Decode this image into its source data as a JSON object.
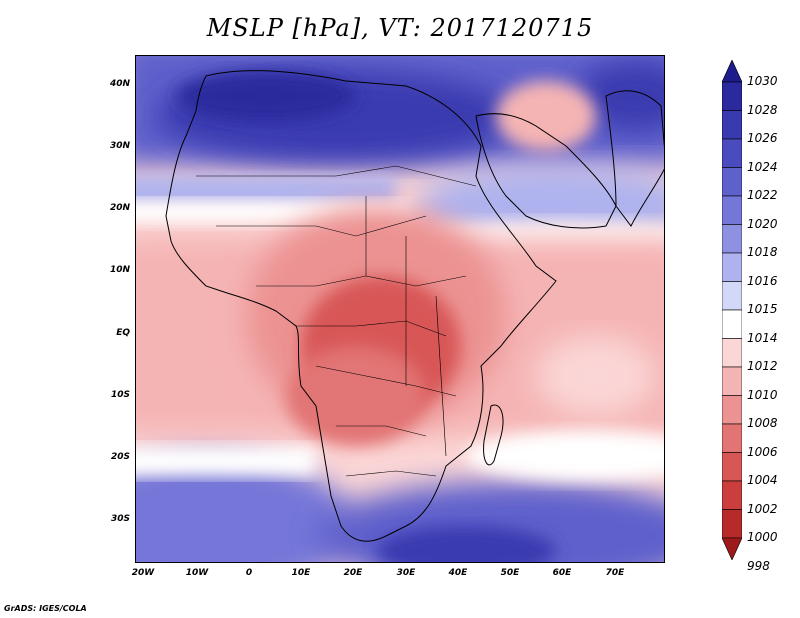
{
  "title": "MSLP [hPa], VT: 2017120715",
  "credit": "GrADS: IGES/COLA",
  "lat_labels": [
    "40N",
    "30N",
    "20N",
    "10N",
    "EQ",
    "10S",
    "20S",
    "30S"
  ],
  "lon_labels": [
    "20W",
    "10W",
    "0",
    "10E",
    "20E",
    "30E",
    "40E",
    "50E",
    "60E",
    "70E"
  ],
  "colorbar": {
    "labels": [
      "1030",
      "1028",
      "1026",
      "1024",
      "1022",
      "1020",
      "1018",
      "1016",
      "1015",
      "1014",
      "1012",
      "1010",
      "1008",
      "1006",
      "1004",
      "1002",
      "1000",
      "998"
    ],
    "colors": [
      "#1e1b8c",
      "#2a2a9e",
      "#3a3ab0",
      "#4b4bc0",
      "#5e60cc",
      "#7476d8",
      "#8e91e2",
      "#aeb2ee",
      "#d4d8f8",
      "#ffffff",
      "#fbd6d6",
      "#f5b4b4",
      "#ec9292",
      "#e27474",
      "#d85656",
      "#cc3e3e",
      "#b82a2a",
      "#9e1a1a"
    ]
  },
  "fields": {
    "high_north": "1026",
    "low_central": "1004",
    "high_south": "1022",
    "arabia_low": "1010"
  }
}
